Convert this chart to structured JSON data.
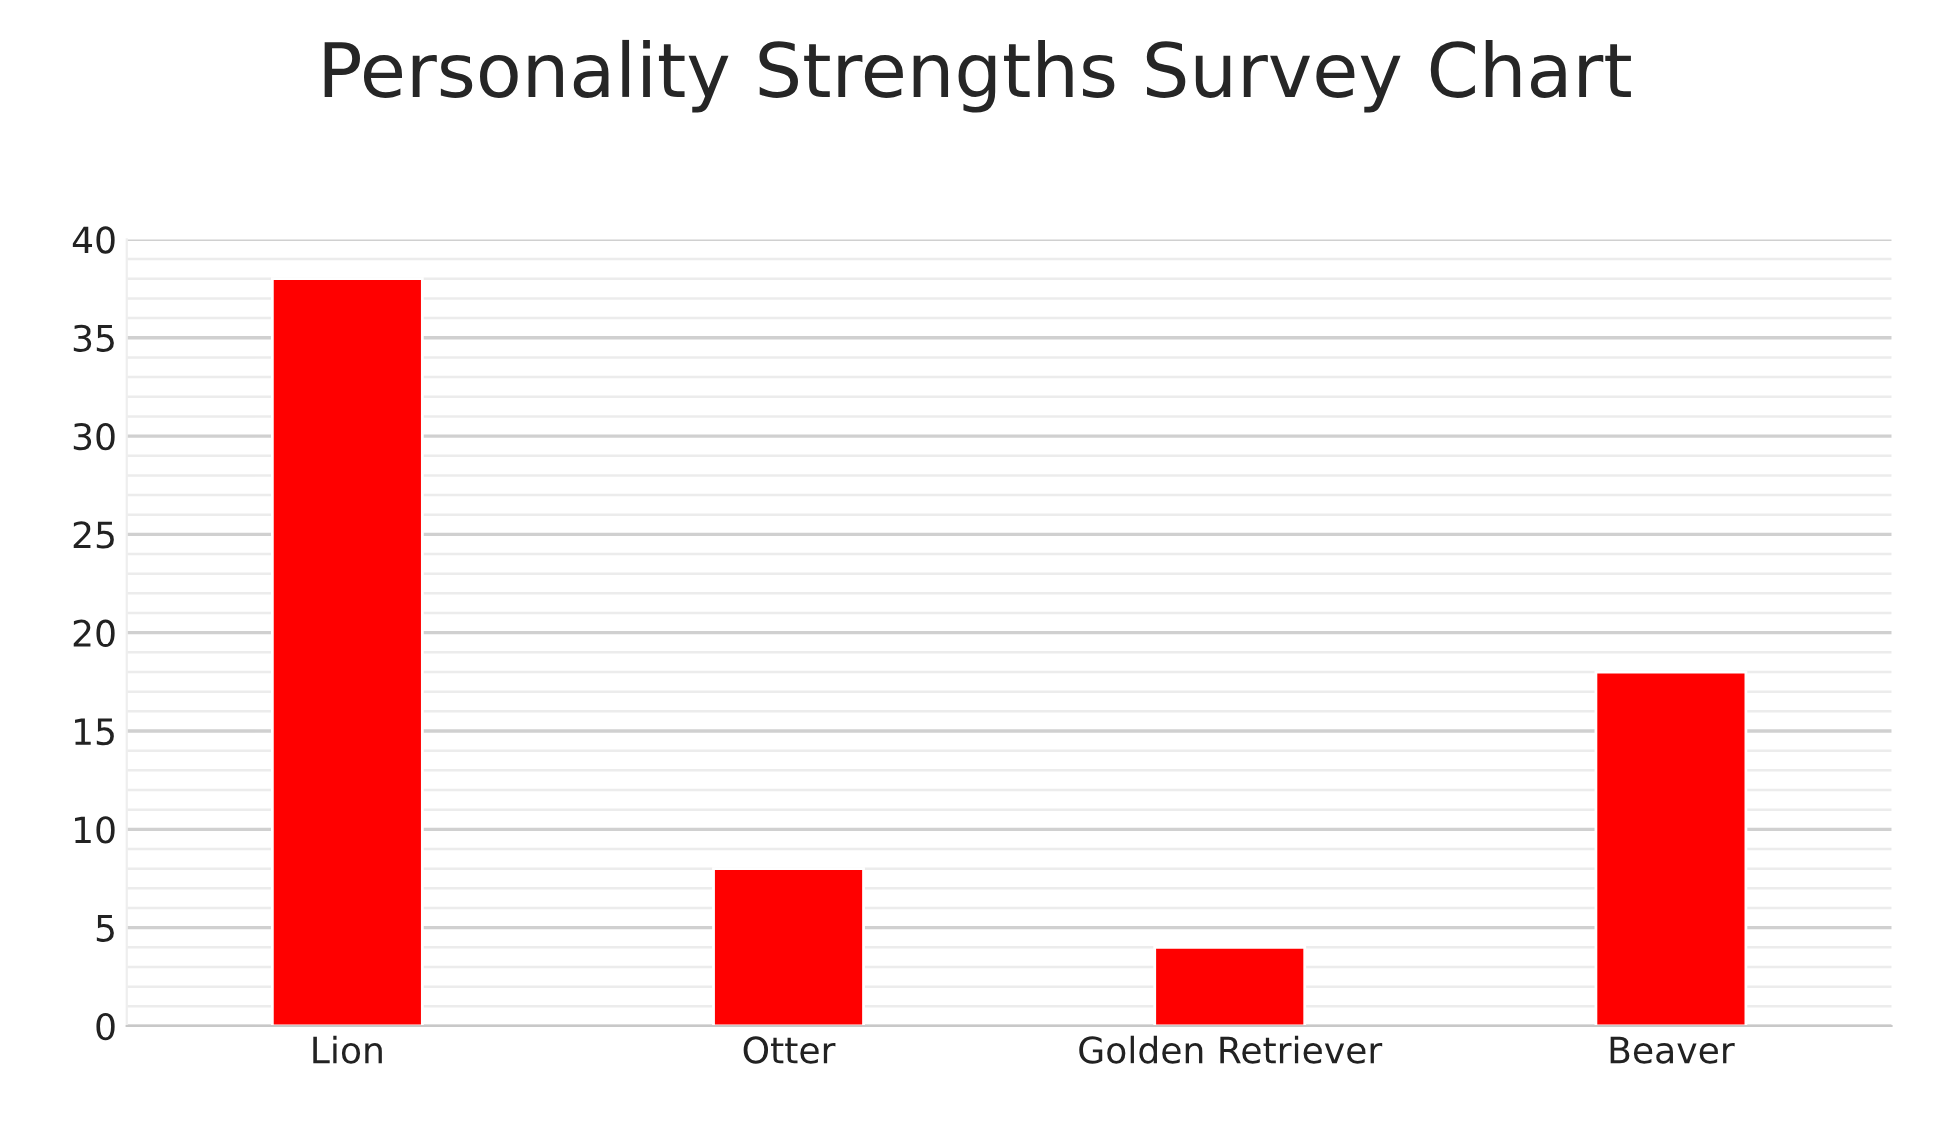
{
  "chart_data": {
    "type": "bar",
    "title": "Personality Strengths Survey Chart",
    "categories": [
      "Lion",
      "Otter",
      "Golden Retriever",
      "Beaver"
    ],
    "values": [
      38,
      8,
      4,
      18
    ],
    "color": "#ff0000",
    "ylim": [
      0,
      40
    ],
    "yticks": [
      0,
      5,
      10,
      15,
      20,
      25,
      30,
      35,
      40
    ],
    "grid": "y",
    "legend": false
  }
}
